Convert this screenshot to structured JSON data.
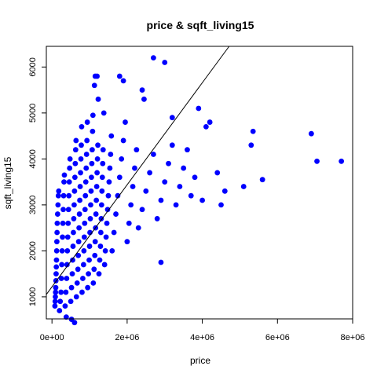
{
  "chart_data": {
    "type": "scatter",
    "title": "price  & sqft_living15",
    "xlabel": "price",
    "ylabel": "sqft_living15",
    "xlim": [
      -150000,
      8000000
    ],
    "ylim": [
      520,
      6450
    ],
    "x_ticks": [
      {
        "value": 0,
        "label": "0e+00"
      },
      {
        "value": 2000000,
        "label": "2e+06"
      },
      {
        "value": 4000000,
        "label": "4e+06"
      },
      {
        "value": 6000000,
        "label": "6e+06"
      },
      {
        "value": 8000000,
        "label": "8e+06"
      }
    ],
    "y_ticks": [
      {
        "value": 1000,
        "label": "1000"
      },
      {
        "value": 2000,
        "label": "2000"
      },
      {
        "value": 3000,
        "label": "3000"
      },
      {
        "value": 4000,
        "label": "4000"
      },
      {
        "value": 5000,
        "label": "5000"
      },
      {
        "value": 6000,
        "label": "6000"
      }
    ],
    "grid": false,
    "point_color": "#0000ff",
    "line_color": "#000000",
    "regression_line": {
      "intercept": 1218,
      "slope": 0.00111
    },
    "points": [
      [
        78000,
        800
      ],
      [
        85000,
        900
      ],
      [
        90000,
        1000
      ],
      [
        95000,
        1100
      ],
      [
        100000,
        1200
      ],
      [
        105000,
        1350
      ],
      [
        110000,
        1500
      ],
      [
        115000,
        1650
      ],
      [
        120000,
        1800
      ],
      [
        125000,
        2000
      ],
      [
        130000,
        2200
      ],
      [
        135000,
        2400
      ],
      [
        140000,
        2600
      ],
      [
        150000,
        2800
      ],
      [
        160000,
        3000
      ],
      [
        170000,
        3200
      ],
      [
        180000,
        3300
      ],
      [
        200000,
        700
      ],
      [
        220000,
        900
      ],
      [
        240000,
        1100
      ],
      [
        250000,
        1400
      ],
      [
        260000,
        1700
      ],
      [
        270000,
        2000
      ],
      [
        280000,
        2300
      ],
      [
        290000,
        2600
      ],
      [
        300000,
        2900
      ],
      [
        310000,
        3200
      ],
      [
        320000,
        3500
      ],
      [
        330000,
        3650
      ],
      [
        350000,
        800
      ],
      [
        370000,
        1100
      ],
      [
        390000,
        1400
      ],
      [
        400000,
        1700
      ],
      [
        410000,
        2000
      ],
      [
        420000,
        2300
      ],
      [
        430000,
        2600
      ],
      [
        440000,
        2900
      ],
      [
        450000,
        3200
      ],
      [
        460000,
        3500
      ],
      [
        470000,
        3800
      ],
      [
        480000,
        4000
      ],
      [
        500000,
        900
      ],
      [
        520000,
        1200
      ],
      [
        540000,
        1500
      ],
      [
        550000,
        1800
      ],
      [
        560000,
        2100
      ],
      [
        570000,
        2400
      ],
      [
        580000,
        2700
      ],
      [
        590000,
        3000
      ],
      [
        600000,
        3300
      ],
      [
        610000,
        3600
      ],
      [
        620000,
        3900
      ],
      [
        630000,
        4200
      ],
      [
        640000,
        4400
      ],
      [
        650000,
        1000
      ],
      [
        670000,
        1300
      ],
      [
        690000,
        1600
      ],
      [
        700000,
        1900
      ],
      [
        710000,
        2200
      ],
      [
        720000,
        2500
      ],
      [
        730000,
        2800
      ],
      [
        740000,
        3100
      ],
      [
        750000,
        3400
      ],
      [
        760000,
        3700
      ],
      [
        770000,
        4000
      ],
      [
        780000,
        4300
      ],
      [
        790000,
        4700
      ],
      [
        800000,
        1100
      ],
      [
        820000,
        1400
      ],
      [
        840000,
        1700
      ],
      [
        850000,
        2000
      ],
      [
        860000,
        2300
      ],
      [
        870000,
        2600
      ],
      [
        880000,
        2900
      ],
      [
        890000,
        3200
      ],
      [
        900000,
        3500
      ],
      [
        910000,
        3800
      ],
      [
        920000,
        4100
      ],
      [
        930000,
        4400
      ],
      [
        940000,
        4800
      ],
      [
        950000,
        1200
      ],
      [
        970000,
        1500
      ],
      [
        990000,
        1800
      ],
      [
        1000000,
        2100
      ],
      [
        1010000,
        2400
      ],
      [
        1020000,
        2700
      ],
      [
        1030000,
        3000
      ],
      [
        1040000,
        3300
      ],
      [
        1050000,
        3600
      ],
      [
        1060000,
        3900
      ],
      [
        1070000,
        4200
      ],
      [
        1080000,
        4600
      ],
      [
        1090000,
        4950
      ],
      [
        1100000,
        1300
      ],
      [
        1120000,
        1600
      ],
      [
        1140000,
        1900
      ],
      [
        1150000,
        2200
      ],
      [
        1160000,
        2500
      ],
      [
        1170000,
        2800
      ],
      [
        1180000,
        3100
      ],
      [
        1190000,
        3400
      ],
      [
        1200000,
        3700
      ],
      [
        1210000,
        4000
      ],
      [
        1220000,
        4300
      ],
      [
        1230000,
        5300
      ],
      [
        1250000,
        1500
      ],
      [
        1270000,
        1800
      ],
      [
        1290000,
        2100
      ],
      [
        1300000,
        2400
      ],
      [
        1310000,
        2700
      ],
      [
        1320000,
        3000
      ],
      [
        1330000,
        3300
      ],
      [
        1340000,
        3600
      ],
      [
        1350000,
        3900
      ],
      [
        1360000,
        4200
      ],
      [
        1380000,
        5000
      ],
      [
        1400000,
        1700
      ],
      [
        1420000,
        2000
      ],
      [
        1440000,
        2300
      ],
      [
        1460000,
        2600
      ],
      [
        1480000,
        2900
      ],
      [
        1500000,
        3200
      ],
      [
        1520000,
        3500
      ],
      [
        1540000,
        3800
      ],
      [
        1560000,
        4100
      ],
      [
        1580000,
        4500
      ],
      [
        1600000,
        2000
      ],
      [
        1650000,
        2400
      ],
      [
        1700000,
        2800
      ],
      [
        1750000,
        3200
      ],
      [
        1800000,
        3600
      ],
      [
        1850000,
        4000
      ],
      [
        1900000,
        4400
      ],
      [
        1950000,
        4800
      ],
      [
        2000000,
        2200
      ],
      [
        2050000,
        2600
      ],
      [
        2100000,
        3000
      ],
      [
        2150000,
        3400
      ],
      [
        2200000,
        3800
      ],
      [
        2250000,
        4200
      ],
      [
        2300000,
        2500
      ],
      [
        2400000,
        2900
      ],
      [
        2500000,
        3300
      ],
      [
        2600000,
        3700
      ],
      [
        2700000,
        4100
      ],
      [
        2800000,
        2700
      ],
      [
        2900000,
        3100
      ],
      [
        3000000,
        3500
      ],
      [
        3100000,
        3900
      ],
      [
        3200000,
        4300
      ],
      [
        3300000,
        3000
      ],
      [
        3400000,
        3400
      ],
      [
        3500000,
        3800
      ],
      [
        3600000,
        4200
      ],
      [
        3700000,
        3200
      ],
      [
        3800000,
        3600
      ],
      [
        4000000,
        3100
      ],
      [
        4100000,
        4700
      ],
      [
        4200000,
        4800
      ],
      [
        1150000,
        5800
      ],
      [
        1130000,
        5600
      ],
      [
        1200000,
        5800
      ],
      [
        1800000,
        5800
      ],
      [
        1900000,
        5700
      ],
      [
        2400000,
        5500
      ],
      [
        2450000,
        5300
      ],
      [
        2700000,
        6200
      ],
      [
        3000000,
        6100
      ],
      [
        3200000,
        4900
      ],
      [
        3900000,
        5100
      ],
      [
        4400000,
        3700
      ],
      [
        4500000,
        3000
      ],
      [
        4600000,
        3300
      ],
      [
        5100000,
        3400
      ],
      [
        5300000,
        4300
      ],
      [
        5350000,
        4600
      ],
      [
        5600000,
        3550
      ],
      [
        6900000,
        4550
      ],
      [
        7050000,
        3950
      ],
      [
        7700000,
        3950
      ],
      [
        2900000,
        1750
      ],
      [
        600000,
        440
      ],
      [
        520000,
        510
      ],
      [
        380000,
        560
      ]
    ]
  }
}
